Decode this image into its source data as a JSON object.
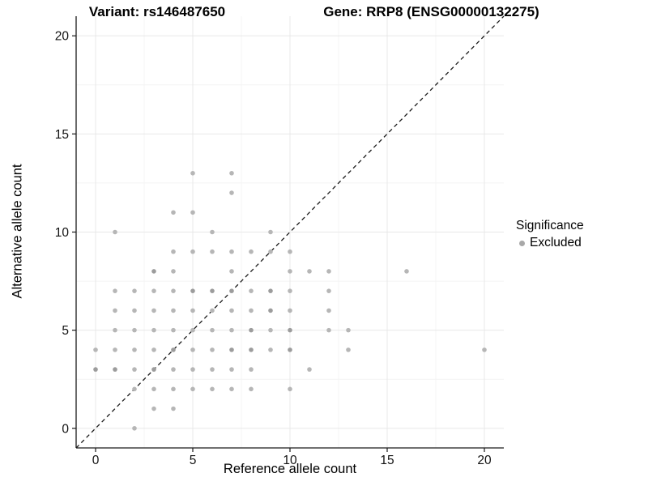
{
  "header": {
    "title_left": "Variant: rs146487650",
    "title_right": "Gene: RRP8 (ENSG00000132275)"
  },
  "chart_data": {
    "type": "scatter",
    "title": "Variant: rs146487650 | Gene: RRP8 (ENSG00000132275)",
    "xlabel": "Reference allele count",
    "ylabel": "Alternative allele count",
    "xlim": [
      -1,
      21
    ],
    "ylim": [
      -1,
      21
    ],
    "x_ticks": [
      0,
      5,
      10,
      15,
      20
    ],
    "y_ticks": [
      0,
      5,
      10,
      15,
      20
    ],
    "x_minor_ticks": [
      2.5,
      7.5,
      12.5,
      17.5
    ],
    "y_minor_ticks": [
      2.5,
      7.5,
      12.5,
      17.5
    ],
    "grid": "major+minor",
    "reference_line": {
      "type": "identity y=x",
      "style": "dashed",
      "from": [
        -1,
        -1
      ],
      "to": [
        21,
        21
      ]
    },
    "legend": {
      "title": "Significance",
      "position": "right",
      "items": [
        {
          "label": "Excluded",
          "marker": "circle",
          "color": "#a8a8a8"
        }
      ]
    },
    "series": [
      {
        "name": "Excluded",
        "points": [
          [
            2,
            0
          ],
          [
            3,
            1
          ],
          [
            4,
            1
          ],
          [
            2,
            2
          ],
          [
            3,
            2
          ],
          [
            4,
            2
          ],
          [
            5,
            2
          ],
          [
            6,
            2
          ],
          [
            7,
            2
          ],
          [
            8,
            2
          ],
          [
            10,
            2
          ],
          [
            0,
            3
          ],
          [
            1,
            3
          ],
          [
            2,
            3
          ],
          [
            3,
            3
          ],
          [
            4,
            3
          ],
          [
            5,
            3
          ],
          [
            6,
            3
          ],
          [
            7,
            3
          ],
          [
            8,
            3
          ],
          [
            11,
            3
          ],
          [
            0,
            4
          ],
          [
            1,
            4
          ],
          [
            2,
            4
          ],
          [
            3,
            4
          ],
          [
            4,
            4
          ],
          [
            5,
            4
          ],
          [
            6,
            4
          ],
          [
            7,
            4
          ],
          [
            8,
            4
          ],
          [
            9,
            4
          ],
          [
            10,
            4
          ],
          [
            13,
            4
          ],
          [
            20,
            4
          ],
          [
            1,
            5
          ],
          [
            2,
            5
          ],
          [
            3,
            5
          ],
          [
            4,
            5
          ],
          [
            5,
            5
          ],
          [
            6,
            5
          ],
          [
            7,
            5
          ],
          [
            8,
            5
          ],
          [
            9,
            5
          ],
          [
            10,
            5
          ],
          [
            12,
            5
          ],
          [
            13,
            5
          ],
          [
            1,
            6
          ],
          [
            2,
            6
          ],
          [
            3,
            6
          ],
          [
            4,
            6
          ],
          [
            5,
            6
          ],
          [
            6,
            6
          ],
          [
            7,
            6
          ],
          [
            8,
            6
          ],
          [
            9,
            6
          ],
          [
            10,
            6
          ],
          [
            12,
            6
          ],
          [
            1,
            7
          ],
          [
            2,
            7
          ],
          [
            3,
            7
          ],
          [
            4,
            7
          ],
          [
            5,
            7
          ],
          [
            6,
            7
          ],
          [
            7,
            7
          ],
          [
            8,
            7
          ],
          [
            9,
            7
          ],
          [
            10,
            7
          ],
          [
            12,
            7
          ],
          [
            3,
            8
          ],
          [
            4,
            8
          ],
          [
            7,
            8
          ],
          [
            10,
            8
          ],
          [
            11,
            8
          ],
          [
            12,
            8
          ],
          [
            16,
            8
          ],
          [
            4,
            9
          ],
          [
            5,
            9
          ],
          [
            6,
            9
          ],
          [
            7,
            9
          ],
          [
            8,
            9
          ],
          [
            9,
            9
          ],
          [
            10,
            9
          ],
          [
            1,
            10
          ],
          [
            6,
            10
          ],
          [
            9,
            10
          ],
          [
            4,
            11
          ],
          [
            5,
            11
          ],
          [
            7,
            12
          ],
          [
            5,
            13
          ],
          [
            7,
            13
          ]
        ],
        "overlap_darker_points": [
          [
            0,
            3
          ],
          [
            1,
            3
          ],
          [
            3,
            3
          ],
          [
            4,
            4
          ],
          [
            7,
            4
          ],
          [
            8,
            4
          ],
          [
            10,
            4
          ],
          [
            8,
            5
          ],
          [
            10,
            5
          ],
          [
            9,
            6
          ],
          [
            5,
            7
          ],
          [
            6,
            7
          ],
          [
            7,
            7
          ],
          [
            9,
            7
          ],
          [
            3,
            8
          ]
        ]
      }
    ],
    "style": {
      "point_color": "#b6b6b6",
      "point_color_dark": "#9c9c9c",
      "grid_major": "#e8e8e8",
      "grid_minor": "#f4f4f4",
      "axis_color": "#1a1a1a",
      "tick_label_color": "#111111",
      "dash_line_color": "#1a1a1a",
      "background": "#ffffff"
    }
  }
}
